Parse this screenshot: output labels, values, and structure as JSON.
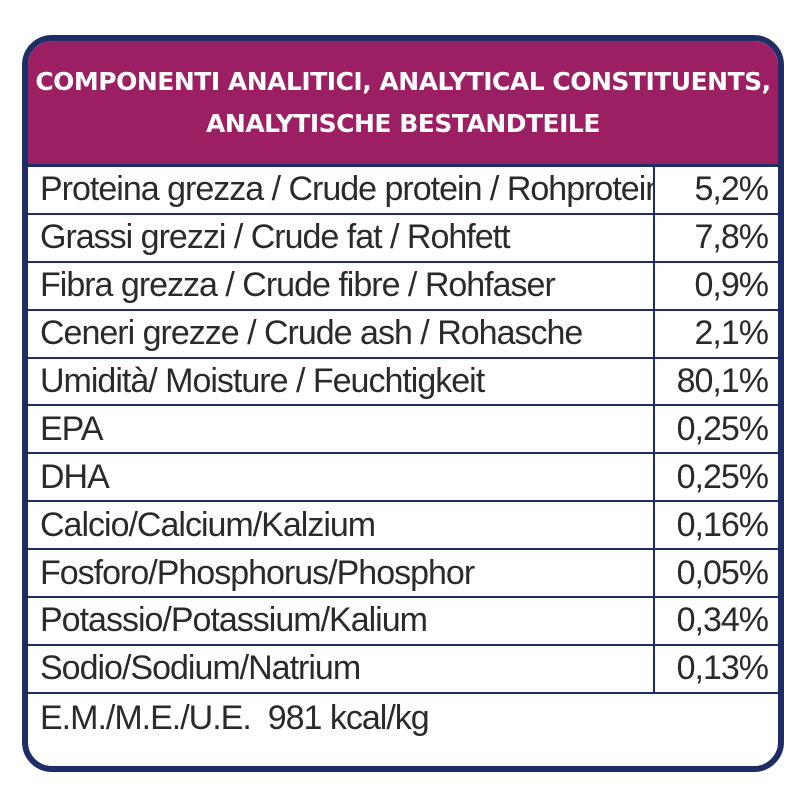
{
  "colors": {
    "header_background": "#9c1f63",
    "border": "#1e2d66",
    "header_text": "#ffffff",
    "body_text": "#2a2a2a"
  },
  "header": {
    "line1": "COMPONENTI ANALITICI, ANALYTICAL CONSTITUENTS,",
    "line2": "ANALYTISCHE BESTANDTEILE"
  },
  "rows": [
    {
      "label": "Proteina grezza / Crude protein / Rohprotein",
      "value": "5,2%"
    },
    {
      "label": "Grassi grezzi / Crude fat / Rohfett",
      "value": "7,8%"
    },
    {
      "label": "Fibra grezza / Crude fibre / Rohfaser",
      "value": "0,9%"
    },
    {
      "label": "Ceneri grezze / Crude ash / Rohasche",
      "value": "2,1%"
    },
    {
      "label": "Umidità/ Moisture / Feuchtigkeit",
      "value": "80,1%"
    },
    {
      "label": "EPA",
      "value": "0,25%"
    },
    {
      "label": "DHA",
      "value": "0,25%"
    },
    {
      "label": "Calcio/Calcium/Kalzium",
      "value": "0,16%"
    },
    {
      "label": "Fosforo/Phosphorus/Phosphor",
      "value": "0,05%"
    },
    {
      "label": "Potassio/Potassium/Kalium",
      "value": "0,34%"
    },
    {
      "label": "Sodio/Sodium/Natrium",
      "value": "0,13%"
    }
  ],
  "footer": {
    "energy": "E.M./M.E./U.E.  981 kcal/kg"
  }
}
